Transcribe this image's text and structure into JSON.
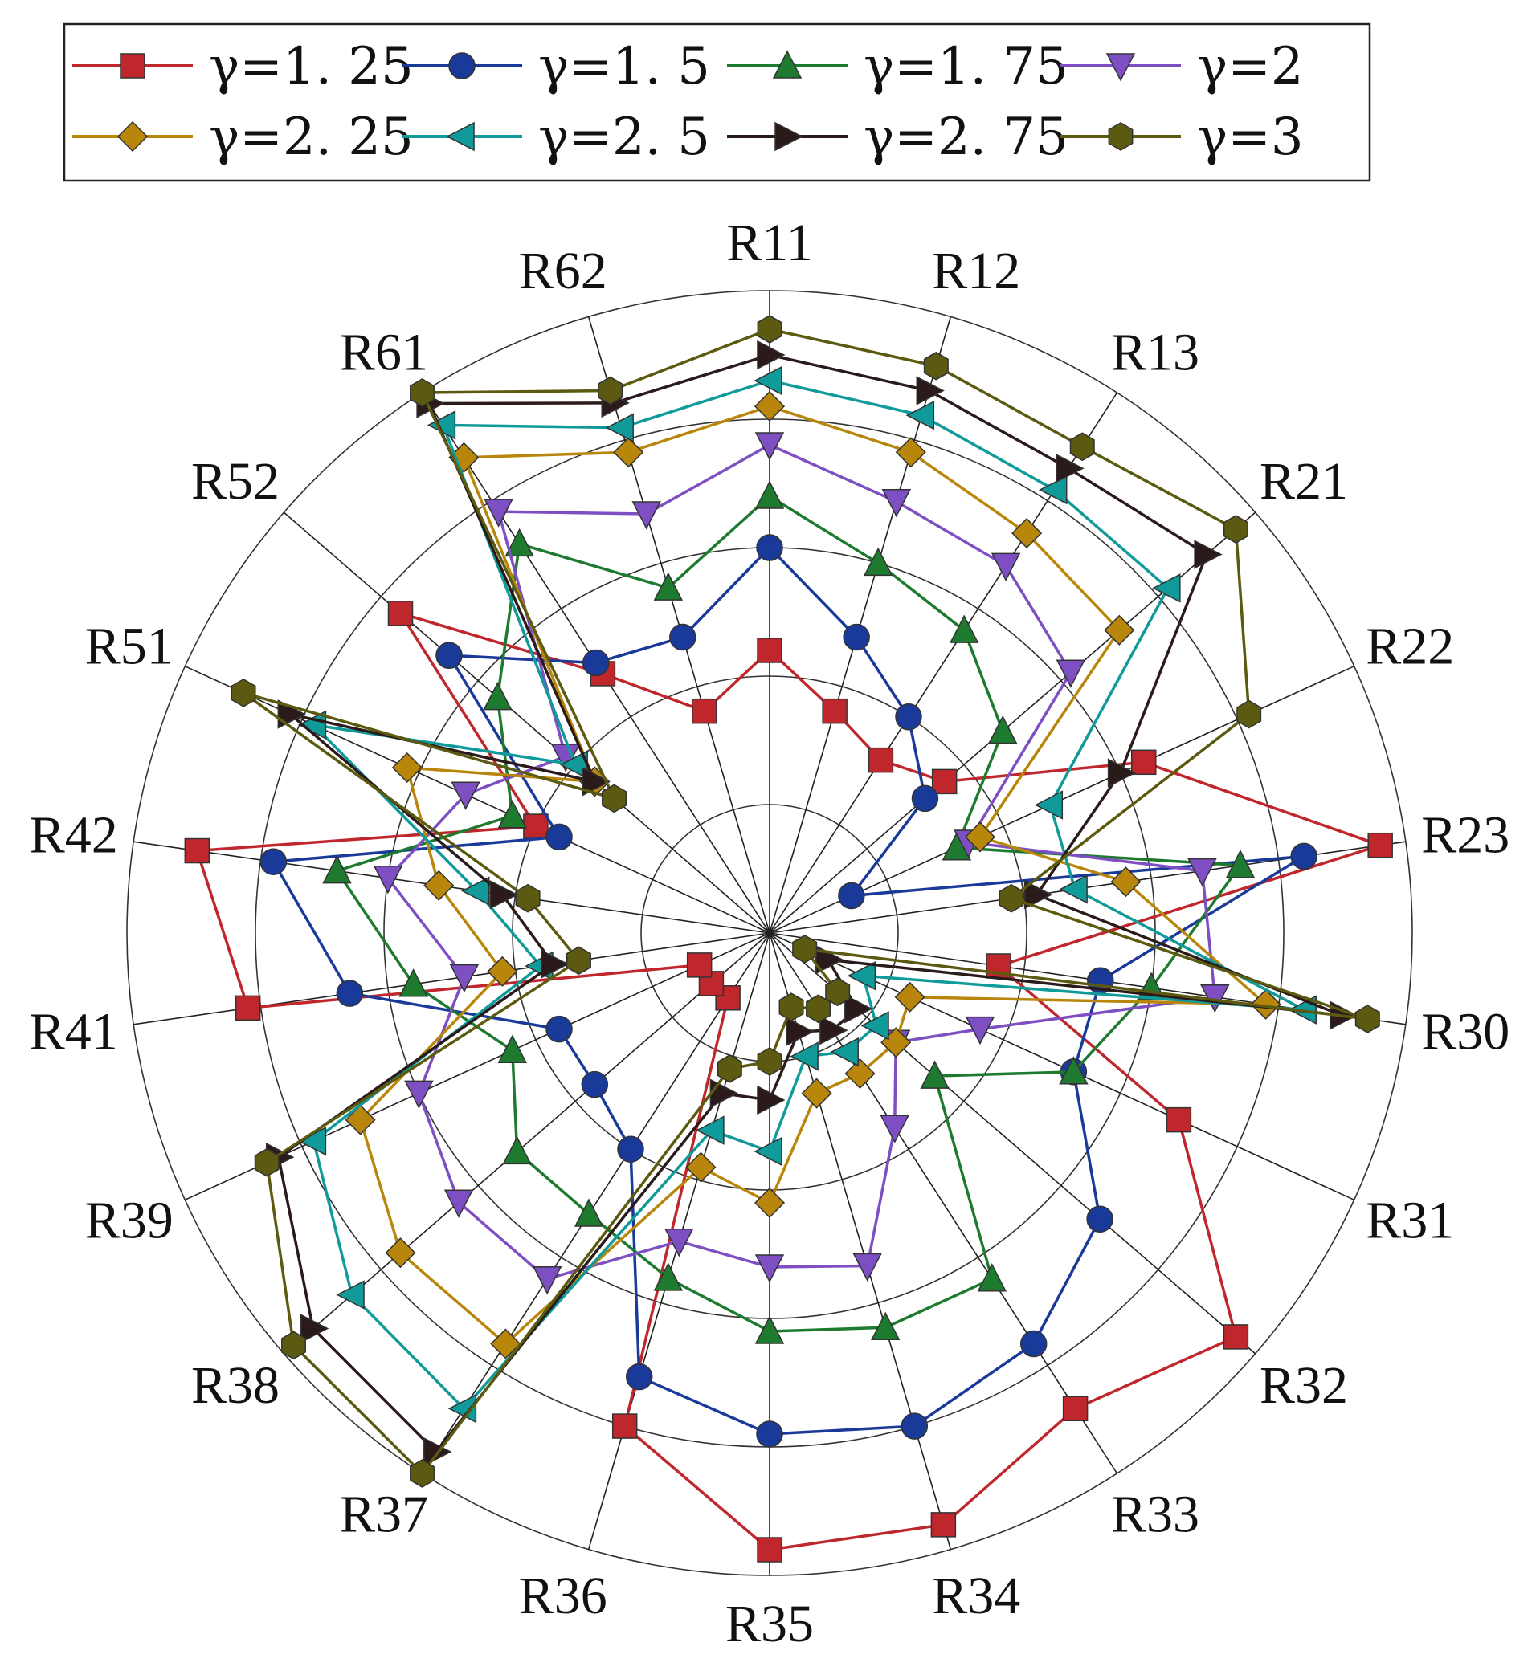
{
  "chart_data": {
    "type": "radar",
    "title": "",
    "axes": [
      "R11",
      "R12",
      "R13",
      "R21",
      "R22",
      "R23",
      "R30",
      "R31",
      "R32",
      "R33",
      "R34",
      "R35",
      "R36",
      "R37",
      "R38",
      "R39",
      "R41",
      "R42",
      "R51",
      "R52",
      "R61",
      "R62"
    ],
    "radial_range": [
      0,
      5
    ],
    "radial_gridlines": [
      1,
      2,
      3,
      4,
      5
    ],
    "grid": true,
    "legend_position": "top",
    "series": [
      {
        "name": "γ=1. 25",
        "color": "#c0272d",
        "marker": "square",
        "values": [
          2.2,
          1.8,
          1.6,
          1.8,
          3.2,
          4.8,
          1.8,
          3.5,
          4.8,
          4.4,
          4.8,
          4.8,
          4.0,
          0.6,
          0.6,
          0.6,
          4.1,
          4.5,
          2.0,
          3.8,
          2.4,
          1.8
        ]
      },
      {
        "name": "γ=1. 5",
        "color": "#1a3a9a",
        "marker": "circle",
        "values": [
          3.0,
          2.4,
          2.0,
          1.6,
          0.7,
          4.2,
          2.6,
          2.6,
          3.4,
          3.8,
          4.0,
          3.9,
          3.6,
          2.0,
          1.8,
          1.8,
          3.3,
          3.9,
          1.8,
          3.3,
          2.5,
          2.4
        ]
      },
      {
        "name": "γ=1. 75",
        "color": "#1e7a2e",
        "marker": "triangle-up",
        "values": [
          3.4,
          3.0,
          2.8,
          2.4,
          1.6,
          3.7,
          3.0,
          2.6,
          1.7,
          3.2,
          3.2,
          3.1,
          2.8,
          2.6,
          2.6,
          2.2,
          2.8,
          3.4,
          2.2,
          2.8,
          3.6,
          2.8
        ]
      },
      {
        "name": "γ=2",
        "color": "#7e4fc3",
        "marker": "triangle-down",
        "values": [
          3.8,
          3.5,
          3.4,
          3.1,
          1.7,
          3.4,
          3.5,
          1.8,
          1.3,
          1.8,
          2.7,
          2.6,
          2.5,
          3.2,
          3.2,
          3.0,
          2.4,
          3.0,
          2.6,
          2.1,
          3.9,
          3.4
        ]
      },
      {
        "name": "γ=2. 25",
        "color": "#b8860b",
        "marker": "diamond",
        "values": [
          4.1,
          3.9,
          3.7,
          3.6,
          1.8,
          2.8,
          3.9,
          1.2,
          1.3,
          1.3,
          1.3,
          2.1,
          1.9,
          3.8,
          3.8,
          3.5,
          2.1,
          2.6,
          3.1,
          1.8,
          4.4,
          3.9
        ]
      },
      {
        "name": "γ=2. 5",
        "color": "#119a9a",
        "marker": "triangle-left",
        "values": [
          4.3,
          4.2,
          4.1,
          4.1,
          2.4,
          2.4,
          4.2,
          0.8,
          1.1,
          1.1,
          1.0,
          1.7,
          1.6,
          4.4,
          4.3,
          3.9,
          1.8,
          2.3,
          3.9,
          2.0,
          4.7,
          4.1
        ]
      },
      {
        "name": "γ=2. 75",
        "color": "#2b1a1a",
        "marker": "triangle-right",
        "values": [
          4.5,
          4.4,
          4.3,
          4.5,
          3.0,
          2.1,
          4.5,
          0.5,
          0.9,
          0.9,
          0.8,
          1.3,
          1.3,
          4.8,
          4.7,
          4.2,
          1.7,
          2.1,
          4.1,
          1.8,
          4.9,
          4.3
        ]
      },
      {
        "name": "γ=3",
        "color": "#5c5a10",
        "marker": "hexagon",
        "values": [
          4.7,
          4.6,
          4.5,
          4.8,
          4.1,
          1.9,
          4.7,
          0.3,
          0.7,
          0.7,
          0.6,
          1.0,
          1.1,
          5.0,
          4.9,
          4.3,
          1.5,
          1.9,
          4.5,
          1.6,
          5.0,
          4.4
        ]
      }
    ]
  }
}
